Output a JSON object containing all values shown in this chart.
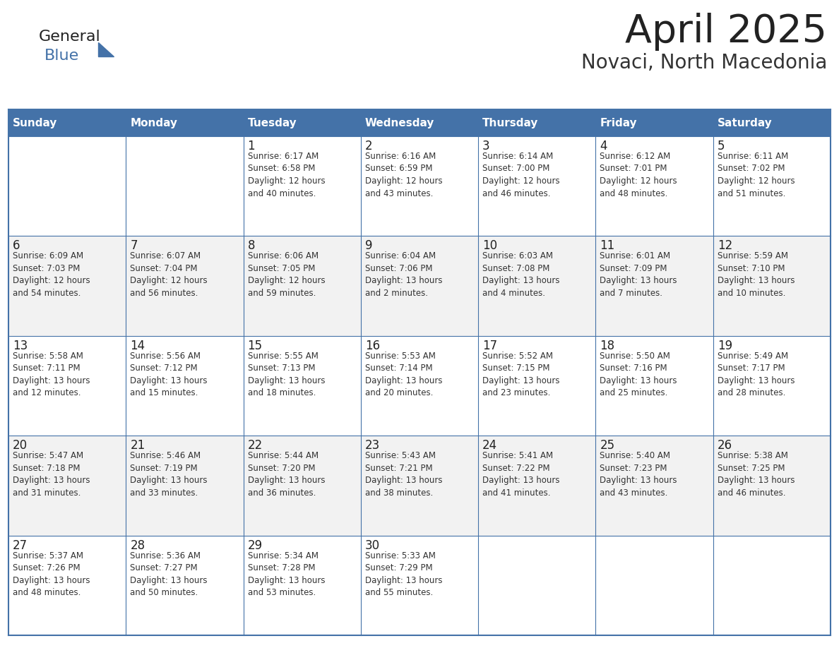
{
  "title": "April 2025",
  "subtitle": "Novaci, North Macedonia",
  "days_of_week": [
    "Sunday",
    "Monday",
    "Tuesday",
    "Wednesday",
    "Thursday",
    "Friday",
    "Saturday"
  ],
  "header_bg": "#4472A8",
  "header_text": "#FFFFFF",
  "border_color": "#4472A8",
  "title_color": "#222222",
  "subtitle_color": "#333333",
  "text_color": "#333333",
  "day_num_color": "#222222",
  "row_bg_colors": [
    "#FFFFFF",
    "#F2F2F2"
  ],
  "logo_general_color": "#222222",
  "logo_blue_color": "#4472A8",
  "logo_triangle_color": "#4472A8",
  "calendar_data": [
    [
      {
        "day": null,
        "info": ""
      },
      {
        "day": null,
        "info": ""
      },
      {
        "day": 1,
        "info": "Sunrise: 6:17 AM\nSunset: 6:58 PM\nDaylight: 12 hours\nand 40 minutes."
      },
      {
        "day": 2,
        "info": "Sunrise: 6:16 AM\nSunset: 6:59 PM\nDaylight: 12 hours\nand 43 minutes."
      },
      {
        "day": 3,
        "info": "Sunrise: 6:14 AM\nSunset: 7:00 PM\nDaylight: 12 hours\nand 46 minutes."
      },
      {
        "day": 4,
        "info": "Sunrise: 6:12 AM\nSunset: 7:01 PM\nDaylight: 12 hours\nand 48 minutes."
      },
      {
        "day": 5,
        "info": "Sunrise: 6:11 AM\nSunset: 7:02 PM\nDaylight: 12 hours\nand 51 minutes."
      }
    ],
    [
      {
        "day": 6,
        "info": "Sunrise: 6:09 AM\nSunset: 7:03 PM\nDaylight: 12 hours\nand 54 minutes."
      },
      {
        "day": 7,
        "info": "Sunrise: 6:07 AM\nSunset: 7:04 PM\nDaylight: 12 hours\nand 56 minutes."
      },
      {
        "day": 8,
        "info": "Sunrise: 6:06 AM\nSunset: 7:05 PM\nDaylight: 12 hours\nand 59 minutes."
      },
      {
        "day": 9,
        "info": "Sunrise: 6:04 AM\nSunset: 7:06 PM\nDaylight: 13 hours\nand 2 minutes."
      },
      {
        "day": 10,
        "info": "Sunrise: 6:03 AM\nSunset: 7:08 PM\nDaylight: 13 hours\nand 4 minutes."
      },
      {
        "day": 11,
        "info": "Sunrise: 6:01 AM\nSunset: 7:09 PM\nDaylight: 13 hours\nand 7 minutes."
      },
      {
        "day": 12,
        "info": "Sunrise: 5:59 AM\nSunset: 7:10 PM\nDaylight: 13 hours\nand 10 minutes."
      }
    ],
    [
      {
        "day": 13,
        "info": "Sunrise: 5:58 AM\nSunset: 7:11 PM\nDaylight: 13 hours\nand 12 minutes."
      },
      {
        "day": 14,
        "info": "Sunrise: 5:56 AM\nSunset: 7:12 PM\nDaylight: 13 hours\nand 15 minutes."
      },
      {
        "day": 15,
        "info": "Sunrise: 5:55 AM\nSunset: 7:13 PM\nDaylight: 13 hours\nand 18 minutes."
      },
      {
        "day": 16,
        "info": "Sunrise: 5:53 AM\nSunset: 7:14 PM\nDaylight: 13 hours\nand 20 minutes."
      },
      {
        "day": 17,
        "info": "Sunrise: 5:52 AM\nSunset: 7:15 PM\nDaylight: 13 hours\nand 23 minutes."
      },
      {
        "day": 18,
        "info": "Sunrise: 5:50 AM\nSunset: 7:16 PM\nDaylight: 13 hours\nand 25 minutes."
      },
      {
        "day": 19,
        "info": "Sunrise: 5:49 AM\nSunset: 7:17 PM\nDaylight: 13 hours\nand 28 minutes."
      }
    ],
    [
      {
        "day": 20,
        "info": "Sunrise: 5:47 AM\nSunset: 7:18 PM\nDaylight: 13 hours\nand 31 minutes."
      },
      {
        "day": 21,
        "info": "Sunrise: 5:46 AM\nSunset: 7:19 PM\nDaylight: 13 hours\nand 33 minutes."
      },
      {
        "day": 22,
        "info": "Sunrise: 5:44 AM\nSunset: 7:20 PM\nDaylight: 13 hours\nand 36 minutes."
      },
      {
        "day": 23,
        "info": "Sunrise: 5:43 AM\nSunset: 7:21 PM\nDaylight: 13 hours\nand 38 minutes."
      },
      {
        "day": 24,
        "info": "Sunrise: 5:41 AM\nSunset: 7:22 PM\nDaylight: 13 hours\nand 41 minutes."
      },
      {
        "day": 25,
        "info": "Sunrise: 5:40 AM\nSunset: 7:23 PM\nDaylight: 13 hours\nand 43 minutes."
      },
      {
        "day": 26,
        "info": "Sunrise: 5:38 AM\nSunset: 7:25 PM\nDaylight: 13 hours\nand 46 minutes."
      }
    ],
    [
      {
        "day": 27,
        "info": "Sunrise: 5:37 AM\nSunset: 7:26 PM\nDaylight: 13 hours\nand 48 minutes."
      },
      {
        "day": 28,
        "info": "Sunrise: 5:36 AM\nSunset: 7:27 PM\nDaylight: 13 hours\nand 50 minutes."
      },
      {
        "day": 29,
        "info": "Sunrise: 5:34 AM\nSunset: 7:28 PM\nDaylight: 13 hours\nand 53 minutes."
      },
      {
        "day": 30,
        "info": "Sunrise: 5:33 AM\nSunset: 7:29 PM\nDaylight: 13 hours\nand 55 minutes."
      },
      {
        "day": null,
        "info": ""
      },
      {
        "day": null,
        "info": ""
      },
      {
        "day": null,
        "info": ""
      }
    ]
  ]
}
